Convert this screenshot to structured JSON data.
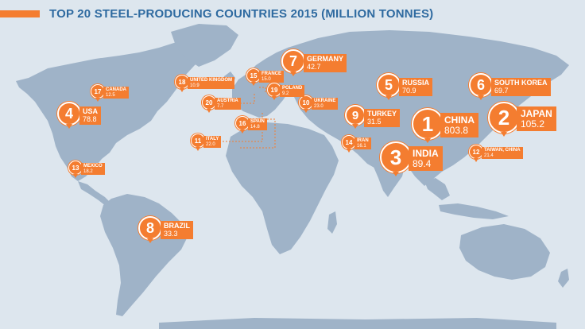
{
  "title": "TOP 20 STEEL-PRODUCING COUNTRIES 2015 (MILLION TONNES)",
  "colors": {
    "ocean": "#dde6ee",
    "land": "#9fb3c8",
    "accent": "#f47d30",
    "title": "#2e6aa0"
  },
  "markers": [
    {
      "rank": "1",
      "name": "CHINA",
      "value": "803.8"
    },
    {
      "rank": "2",
      "name": "JAPAN",
      "value": "105.2"
    },
    {
      "rank": "3",
      "name": "INDIA",
      "value": "89.4"
    },
    {
      "rank": "4",
      "name": "USA",
      "value": "78.8"
    },
    {
      "rank": "5",
      "name": "RUSSIA",
      "value": "70.9"
    },
    {
      "rank": "6",
      "name": "SOUTH KOREA",
      "value": "69.7"
    },
    {
      "rank": "7",
      "name": "GERMANY",
      "value": "42.7"
    },
    {
      "rank": "8",
      "name": "BRAZIL",
      "value": "33.3"
    },
    {
      "rank": "9",
      "name": "TURKEY",
      "value": "31.5"
    },
    {
      "rank": "10",
      "name": "UKRAINE",
      "value": "23.0"
    },
    {
      "rank": "11",
      "name": "ITALY",
      "value": "22.0"
    },
    {
      "rank": "12",
      "name": "TAIWAN, CHINA",
      "value": "21.4"
    },
    {
      "rank": "13",
      "name": "MEXICO",
      "value": "18.2"
    },
    {
      "rank": "14",
      "name": "IRAN",
      "value": "16.1"
    },
    {
      "rank": "15",
      "name": "FRANCE",
      "value": "15.0"
    },
    {
      "rank": "16",
      "name": "SPAIN",
      "value": "14.8"
    },
    {
      "rank": "17",
      "name": "CANADA",
      "value": "12.5"
    },
    {
      "rank": "18",
      "name": "UNITED KINGDOM",
      "value": "10.9"
    },
    {
      "rank": "19",
      "name": "POLAND",
      "value": "9.2"
    },
    {
      "rank": "20",
      "name": "AUSTRIA",
      "value": "7.7"
    }
  ]
}
